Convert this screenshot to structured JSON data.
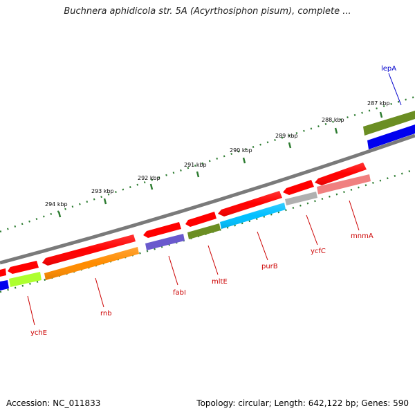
{
  "title": "Buchnera aphidicola str. 5A (Acyrthosiphon pisum), complete ...",
  "footer": {
    "accession": "Accession: NC_011833",
    "topology": "Topology: circular; Length: 642,122 bp; Genes: 590"
  },
  "scale_labels": [
    "287 kbp",
    "288 kbp",
    "289 kbp",
    "290 kbp",
    "291 kbp",
    "292 kbp",
    "293 kbp",
    "294 kbp"
  ],
  "gene_labels": [
    {
      "text": "lepA",
      "color": "#0000cc"
    },
    {
      "text": "mnmA",
      "color": "#cc0000"
    },
    {
      "text": "ycfC",
      "color": "#cc0000"
    },
    {
      "text": "purB",
      "color": "#cc0000"
    },
    {
      "text": "mltE",
      "color": "#cc0000"
    },
    {
      "text": "fabI",
      "color": "#cc0000"
    },
    {
      "text": "rnb",
      "color": "#cc0000"
    },
    {
      "text": "ychE",
      "color": "#cc0000"
    }
  ],
  "colors": {
    "backbone": "#808080",
    "cds_arrow": "#ff0000",
    "tick": "#006600",
    "lepA": "#6b8e23",
    "lepA_partner": "#0000ee",
    "mnmA": "#f08080",
    "ycfC": "#b0b0b0",
    "purB": "#00bfff",
    "mltE": "#6b8e23",
    "fabI": "#6a5acd",
    "rnb": "#ff8c00",
    "ychE": "#adff2f",
    "left_blue": "#0000ee"
  }
}
